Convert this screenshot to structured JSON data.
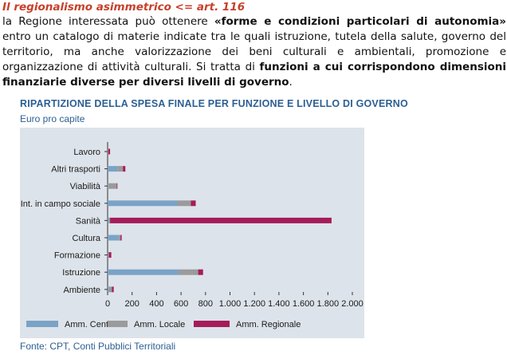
{
  "heading": "Il regionalismo asimmetrico <= art. 116",
  "paragraph": {
    "p1": "la Regione interessata può ottenere ",
    "b1": "«forme e condizioni particolari di autonomia»",
    "p2": " entro un catalogo di materie indicate tra le quali istruzione, tutela della salute, governo del territorio, ma anche valorizzazione dei beni culturali e ambientali, promozione e organizzazione di attività culturali. Si tratta di ",
    "b2": "funzioni a cui corrispondono dimensioni finanziarie diverse per diversi livelli di governo",
    "p3": "."
  },
  "chart_data": {
    "type": "bar",
    "orientation": "horizontal",
    "stacked": true,
    "title": "RIPARTIZIONE DELLA SPESA FINALE PER FUNZIONE E LIVELLO DI GOVERNO",
    "subtitle": "Euro pro capite",
    "categories": [
      "Lavoro",
      "Altri trasporti",
      "Viabilità",
      "Int. in campo sociale",
      "Sanità",
      "Cultura",
      "Formazione",
      "Istruzione",
      "Ambiente"
    ],
    "series": [
      {
        "name": "Amm. Centrale",
        "color": "#7aa3c6",
        "values": [
          0,
          80,
          5,
          570,
          10,
          90,
          0,
          580,
          10
        ]
      },
      {
        "name": "Amm. Locale",
        "color": "#9b9b9b",
        "values": [
          5,
          45,
          70,
          110,
          10,
          15,
          10,
          160,
          25
        ]
      },
      {
        "name": "Amm. Regionale",
        "color": "#a51c5a",
        "values": [
          15,
          20,
          5,
          40,
          1810,
          10,
          20,
          40,
          15
        ]
      }
    ],
    "xticks": [
      "0",
      "200",
      "400",
      "600",
      "800",
      "1.000",
      "1.200",
      "1.400",
      "1.600",
      "1.800",
      "2.000"
    ],
    "xlim": [
      0,
      2000
    ],
    "grid": false,
    "legend_position": "bottom"
  },
  "source": "Fonte: CPT, Conti Pubblici Territoriali"
}
